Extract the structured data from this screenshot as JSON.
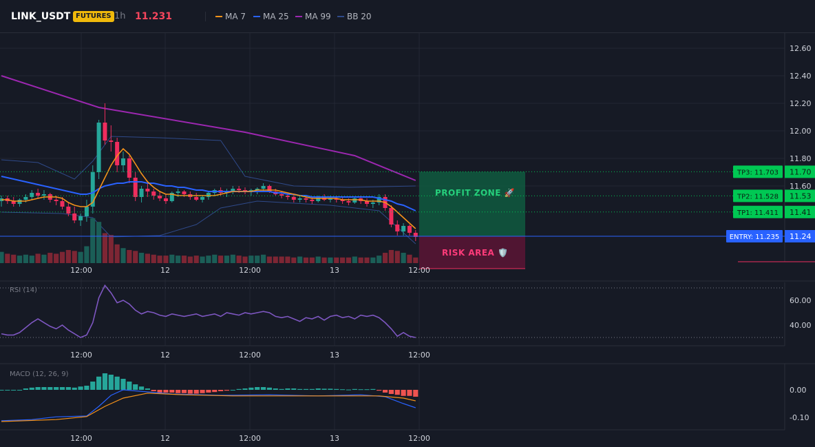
{
  "header": {
    "symbol": "LINK_USDT",
    "badge": "FUTURES",
    "interval": "1h",
    "price": "11.231",
    "indicators": [
      {
        "label": "MA 7",
        "color": "#f7931a"
      },
      {
        "label": "MA 25",
        "color": "#2962ff"
      },
      {
        "label": "MA 99",
        "color": "#9c27b0"
      },
      {
        "label": "BB 20",
        "color": "#2f4a8a"
      }
    ]
  },
  "colors": {
    "up": "#26a69a",
    "down": "#ef2d5e",
    "up_volume": "#1b5e57",
    "down_volume": "#7d2634",
    "ma7": "#f7931a",
    "ma25": "#2962ff",
    "ma99": "#9c27b0",
    "bb": "#2f4a8a",
    "entry": "#2962ff",
    "tp": "#00c853",
    "rsi": "#7e57c2",
    "macd_line": "#2962ff",
    "signal_line": "#f7931a",
    "macd_pos": "#26a69a",
    "macd_neg": "#ef5350"
  },
  "chart_data": {
    "type": "candlestick",
    "time_labels": [
      "12:00",
      "12",
      "12:00",
      "13",
      "12:00"
    ],
    "price_axis": {
      "ticks": [
        "12.60",
        "12.40",
        "12.20",
        "12.00",
        "11.80",
        "11.60"
      ],
      "range": [
        11.05,
        12.72
      ]
    },
    "candles": [
      [
        11.49,
        11.53,
        11.45,
        11.51
      ],
      [
        11.51,
        11.53,
        11.47,
        11.49
      ],
      [
        11.49,
        11.52,
        11.45,
        11.47
      ],
      [
        11.47,
        11.51,
        11.45,
        11.5
      ],
      [
        11.5,
        11.54,
        11.48,
        11.52
      ],
      [
        11.52,
        11.57,
        11.5,
        11.55
      ],
      [
        11.55,
        11.58,
        11.51,
        11.53
      ],
      [
        11.53,
        11.57,
        11.5,
        11.54
      ],
      [
        11.54,
        11.55,
        11.48,
        11.5
      ],
      [
        11.5,
        11.53,
        11.46,
        11.49
      ],
      [
        11.49,
        11.52,
        11.43,
        11.45
      ],
      [
        11.45,
        11.48,
        11.38,
        11.4
      ],
      [
        11.4,
        11.45,
        11.33,
        11.35
      ],
      [
        11.35,
        11.4,
        11.31,
        11.38
      ],
      [
        11.38,
        11.5,
        11.34,
        11.45
      ],
      [
        11.45,
        11.75,
        11.4,
        11.7
      ],
      [
        11.7,
        12.08,
        11.65,
        12.06
      ],
      [
        12.06,
        12.2,
        11.9,
        11.93
      ],
      [
        11.93,
        12.04,
        11.85,
        11.92
      ],
      [
        11.92,
        11.95,
        11.7,
        11.75
      ],
      [
        11.75,
        11.85,
        11.7,
        11.8
      ],
      [
        11.8,
        11.82,
        11.62,
        11.66
      ],
      [
        11.66,
        11.7,
        11.49,
        11.52
      ],
      [
        11.52,
        11.6,
        11.48,
        11.58
      ],
      [
        11.58,
        11.62,
        11.52,
        11.56
      ],
      [
        11.56,
        11.58,
        11.5,
        11.53
      ],
      [
        11.53,
        11.56,
        11.49,
        11.51
      ],
      [
        11.51,
        11.54,
        11.47,
        11.49
      ],
      [
        11.49,
        11.56,
        11.48,
        11.55
      ],
      [
        11.55,
        11.58,
        11.52,
        11.56
      ],
      [
        11.56,
        11.57,
        11.52,
        11.54
      ],
      [
        11.54,
        11.56,
        11.5,
        11.52
      ],
      [
        11.52,
        11.55,
        11.49,
        11.5
      ],
      [
        11.5,
        11.53,
        11.48,
        11.52
      ],
      [
        11.52,
        11.56,
        11.5,
        11.55
      ],
      [
        11.55,
        11.58,
        11.53,
        11.57
      ],
      [
        11.57,
        11.59,
        11.53,
        11.55
      ],
      [
        11.55,
        11.58,
        11.52,
        11.56
      ],
      [
        11.56,
        11.6,
        11.54,
        11.58
      ],
      [
        11.58,
        11.6,
        11.55,
        11.57
      ],
      [
        11.57,
        11.59,
        11.54,
        11.56
      ],
      [
        11.56,
        11.58,
        11.53,
        11.57
      ],
      [
        11.57,
        11.59,
        11.54,
        11.58
      ],
      [
        11.58,
        11.62,
        11.56,
        11.6
      ],
      [
        11.6,
        11.61,
        11.55,
        11.56
      ],
      [
        11.56,
        11.58,
        11.53,
        11.54
      ],
      [
        11.54,
        11.56,
        11.51,
        11.53
      ],
      [
        11.53,
        11.55,
        11.5,
        11.52
      ],
      [
        11.52,
        11.54,
        11.48,
        11.5
      ],
      [
        11.5,
        11.53,
        11.48,
        11.51
      ],
      [
        11.51,
        11.53,
        11.48,
        11.5
      ],
      [
        11.5,
        11.52,
        11.47,
        11.49
      ],
      [
        11.49,
        11.53,
        11.48,
        11.52
      ],
      [
        11.52,
        11.54,
        11.49,
        11.5
      ],
      [
        11.5,
        11.53,
        11.48,
        11.51
      ],
      [
        11.51,
        11.53,
        11.48,
        11.5
      ],
      [
        11.5,
        11.52,
        11.47,
        11.49
      ],
      [
        11.49,
        11.51,
        11.46,
        11.48
      ],
      [
        11.48,
        11.52,
        11.47,
        11.51
      ],
      [
        11.51,
        11.53,
        11.47,
        11.49
      ],
      [
        11.49,
        11.51,
        11.45,
        11.47
      ],
      [
        11.47,
        11.5,
        11.44,
        11.48
      ],
      [
        11.48,
        11.54,
        11.46,
        11.52
      ],
      [
        11.52,
        11.54,
        11.42,
        11.44
      ],
      [
        11.44,
        11.46,
        11.3,
        11.32
      ],
      [
        11.32,
        11.35,
        11.24,
        11.27
      ],
      [
        11.27,
        11.33,
        11.24,
        11.31
      ],
      [
        11.31,
        11.32,
        11.24,
        11.26
      ],
      [
        11.26,
        11.28,
        11.2,
        11.23
      ]
    ],
    "volumes": [
      12,
      10,
      9,
      8,
      9,
      8,
      10,
      9,
      11,
      10,
      12,
      14,
      13,
      12,
      18,
      48,
      44,
      32,
      30,
      20,
      16,
      14,
      13,
      11,
      10,
      9,
      8,
      8,
      9,
      8,
      8,
      7,
      8,
      7,
      8,
      9,
      8,
      8,
      9,
      8,
      7,
      8,
      8,
      9,
      7,
      7,
      7,
      7,
      6,
      7,
      6,
      6,
      7,
      6,
      6,
      6,
      6,
      6,
      7,
      6,
      6,
      6,
      8,
      11,
      14,
      13,
      11,
      9,
      6
    ],
    "ma7": [
      11.5,
      11.5,
      11.49,
      11.49,
      11.49,
      11.5,
      11.51,
      11.52,
      11.52,
      11.52,
      11.51,
      11.48,
      11.46,
      11.45,
      11.45,
      11.48,
      11.57,
      11.66,
      11.75,
      11.82,
      11.87,
      11.83,
      11.76,
      11.69,
      11.63,
      11.59,
      11.56,
      11.54,
      11.54,
      11.53,
      11.53,
      11.53,
      11.53,
      11.53,
      11.53,
      11.53,
      11.54,
      11.55,
      11.56,
      11.56,
      11.56,
      11.56,
      11.57,
      11.57,
      11.57,
      11.57,
      11.56,
      11.55,
      11.54,
      11.53,
      11.52,
      11.51,
      11.51,
      11.51,
      11.51,
      11.51,
      11.5,
      11.5,
      11.5,
      11.5,
      11.49,
      11.49,
      11.49,
      11.48,
      11.45,
      11.41,
      11.37,
      11.33,
      11.29
    ],
    "ma25": [
      11.67,
      11.66,
      11.65,
      11.64,
      11.63,
      11.62,
      11.61,
      11.6,
      11.59,
      11.58,
      11.57,
      11.56,
      11.55,
      11.54,
      11.54,
      11.55,
      11.58,
      11.6,
      11.61,
      11.62,
      11.62,
      11.63,
      11.63,
      11.63,
      11.62,
      11.62,
      11.61,
      11.6,
      11.6,
      11.59,
      11.59,
      11.58,
      11.57,
      11.57,
      11.56,
      11.56,
      11.56,
      11.56,
      11.56,
      11.56,
      11.56,
      11.56,
      11.56,
      11.56,
      11.56,
      11.55,
      11.55,
      11.54,
      11.54,
      11.53,
      11.53,
      11.52,
      11.52,
      11.52,
      11.52,
      11.52,
      11.52,
      11.52,
      11.52,
      11.52,
      11.52,
      11.52,
      11.51,
      11.5,
      11.49,
      11.47,
      11.46,
      11.44,
      11.42
    ],
    "ma99_points": [
      [
        0,
        12.4
      ],
      [
        16,
        12.17
      ],
      [
        40,
        11.99
      ],
      [
        58,
        11.82
      ],
      [
        68,
        11.64
      ]
    ],
    "bb_upper_points": [
      [
        0,
        11.79
      ],
      [
        6,
        11.77
      ],
      [
        12,
        11.65
      ],
      [
        15,
        11.78
      ],
      [
        18,
        11.96
      ],
      [
        26,
        11.95
      ],
      [
        36,
        11.93
      ],
      [
        40,
        11.67
      ],
      [
        48,
        11.6
      ],
      [
        57,
        11.59
      ],
      [
        68,
        11.6
      ]
    ],
    "bb_lower_points": [
      [
        0,
        11.41
      ],
      [
        10,
        11.4
      ],
      [
        15,
        11.37
      ],
      [
        18,
        11.23
      ],
      [
        26,
        11.24
      ],
      [
        32,
        11.32
      ],
      [
        36,
        11.44
      ],
      [
        42,
        11.49
      ],
      [
        54,
        11.46
      ],
      [
        62,
        11.42
      ],
      [
        68,
        11.18
      ]
    ],
    "trade_levels": [
      {
        "label": "TP3: 11.703",
        "axis": "11.70",
        "value": 11.703
      },
      {
        "label": "TP2: 11.528",
        "axis": "11.53",
        "value": 11.528
      },
      {
        "label": "TP1: 11.411",
        "axis": "11.41",
        "value": 11.411
      },
      {
        "label": "ENTRY: 11.235",
        "axis": "11.24",
        "value": 11.235
      }
    ],
    "zones": {
      "profit": {
        "label": "PROFIT ZONE",
        "icon": "🚀",
        "top": 11.703,
        "bottom": 11.235
      },
      "risk": {
        "label": "RISK AREA",
        "icon": "🛡️"
      }
    },
    "rsi": {
      "title": "RSI (14)",
      "ticks": [
        "60.00",
        "40.00"
      ],
      "range": [
        28,
        74
      ],
      "levels": [
        70,
        30
      ],
      "values": [
        33,
        32,
        32,
        34,
        38,
        42,
        45,
        42,
        39,
        37,
        40,
        36,
        33,
        30,
        32,
        42,
        62,
        72,
        66,
        58,
        60,
        57,
        52,
        49,
        51,
        50,
        48,
        47,
        49,
        48,
        47,
        48,
        49,
        47,
        48,
        49,
        47,
        50,
        49,
        48,
        50,
        49,
        50,
        51,
        50,
        47,
        46,
        47,
        45,
        43,
        46,
        45,
        47,
        44,
        47,
        48,
        46,
        47,
        45,
        48,
        47,
        48,
        46,
        42,
        37,
        31,
        34,
        31,
        30
      ]
    },
    "macd": {
      "title": "MACD (12, 26, 9)",
      "ticks": [
        "0.00",
        "-0.10"
      ],
      "range": [
        -0.145,
        0.085
      ],
      "hist": [
        0.0,
        0.0,
        0.0,
        0.0,
        0.005,
        0.008,
        0.01,
        0.01,
        0.01,
        0.01,
        0.01,
        0.01,
        0.008,
        0.012,
        0.015,
        0.03,
        0.048,
        0.06,
        0.055,
        0.048,
        0.04,
        0.03,
        0.02,
        0.012,
        0.005,
        -0.005,
        -0.01,
        -0.01,
        -0.01,
        -0.012,
        -0.012,
        -0.014,
        -0.014,
        -0.012,
        -0.01,
        -0.008,
        -0.005,
        -0.003,
        0.0,
        0.003,
        0.005,
        0.008,
        0.01,
        0.01,
        0.008,
        0.005,
        0.003,
        0.005,
        0.005,
        0.003,
        0.003,
        0.003,
        0.005,
        0.004,
        0.004,
        0.003,
        0.002,
        0.001,
        0.003,
        0.002,
        0.002,
        0.003,
        -0.003,
        -0.01,
        -0.015,
        -0.018,
        -0.022,
        -0.022,
        -0.025
      ],
      "macd_points": [
        [
          0,
          -0.112
        ],
        [
          5,
          -0.108
        ],
        [
          9,
          -0.098
        ],
        [
          14,
          -0.095
        ],
        [
          16,
          -0.06
        ],
        [
          18,
          -0.02
        ],
        [
          20,
          0.0
        ],
        [
          28,
          -0.015
        ],
        [
          36,
          -0.02
        ],
        [
          44,
          -0.018
        ],
        [
          52,
          -0.022
        ],
        [
          59,
          -0.018
        ],
        [
          63,
          -0.025
        ],
        [
          66,
          -0.05
        ],
        [
          68,
          -0.065
        ]
      ],
      "signal_points": [
        [
          0,
          -0.115
        ],
        [
          9,
          -0.108
        ],
        [
          14,
          -0.097
        ],
        [
          17,
          -0.06
        ],
        [
          20,
          -0.03
        ],
        [
          24,
          -0.012
        ],
        [
          30,
          -0.018
        ],
        [
          38,
          -0.022
        ],
        [
          46,
          -0.022
        ],
        [
          55,
          -0.022
        ],
        [
          62,
          -0.022
        ],
        [
          66,
          -0.03
        ],
        [
          68,
          -0.04
        ]
      ]
    }
  }
}
